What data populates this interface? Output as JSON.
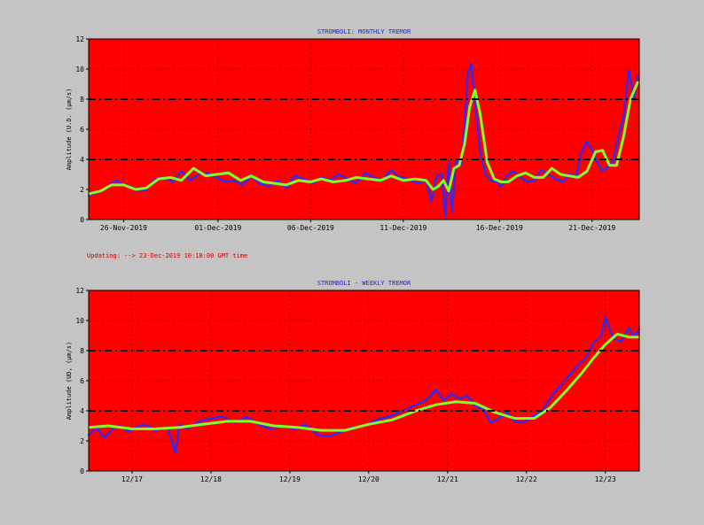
{
  "status": {
    "text": "Updating:  -->  23-Dec-2019 10:18:00 GMT time"
  },
  "colors": {
    "page_background": "#c4c4c4",
    "plot_background": "#ff0000",
    "raw_line": "#2a2aff",
    "smooth_line": "#7fff2a",
    "threshold_line": "#000000",
    "title": "#2020ff",
    "status": "#cc0000"
  },
  "chart_data": [
    {
      "type": "line",
      "title": "STROMBOLI: MONTHLY TREMOR",
      "xlabel": "",
      "ylabel": "Amplitude  (U.D.  (µm/s)",
      "xlim": [
        0,
        31.5
      ],
      "ylim": [
        0,
        12
      ],
      "yticks": [
        0,
        2,
        4,
        6,
        8,
        10,
        12
      ],
      "xticks": [
        {
          "x": 2,
          "label": "26-Nov-2019"
        },
        {
          "x": 7.4,
          "label": "01-Dec-2019"
        },
        {
          "x": 12.7,
          "label": "06-Dec-2019"
        },
        {
          "x": 18,
          "label": "11-Dec-2019"
        },
        {
          "x": 23.5,
          "label": "16-Dec-2019"
        },
        {
          "x": 28.8,
          "label": "21-Dec-2019"
        }
      ],
      "thresholds": [
        4,
        8
      ],
      "grid": true,
      "series": [
        {
          "role": "raw",
          "x": [
            0,
            0.5,
            1,
            1.3,
            1.6,
            2,
            2.4,
            2.8,
            3.3,
            3.8,
            4.3,
            4.8,
            5.3,
            5.8,
            6.3,
            6.8,
            7.3,
            7.8,
            8.3,
            8.8,
            9.3,
            9.8,
            10.3,
            10.8,
            11.3,
            11.8,
            12.3,
            12.8,
            13.3,
            13.8,
            14.3,
            14.8,
            15.3,
            15.8,
            16.3,
            16.8,
            17.3,
            17.8,
            18.3,
            18.8,
            19.3,
            19.6,
            19.9,
            20.2,
            20.4,
            20.6,
            20.8,
            21,
            21.3,
            21.5,
            21.7,
            21.9,
            22.1,
            22.4,
            22.7,
            23,
            23.3,
            23.6,
            23.9,
            24.3,
            24.7,
            25.1,
            25.5,
            25.9,
            26.3,
            26.7,
            27.1,
            27.5,
            27.9,
            28.2,
            28.5,
            28.8,
            29.1,
            29.4,
            29.7,
            30,
            30.3,
            30.6,
            30.9,
            31.2,
            31.4
          ],
          "y": [
            1.6,
            1.8,
            2.1,
            2.4,
            2.6,
            2.3,
            2.2,
            1.9,
            2.0,
            2.7,
            2.8,
            2.5,
            3.2,
            2.6,
            3.0,
            3.1,
            2.8,
            2.5,
            2.6,
            2.3,
            2.9,
            2.4,
            2.2,
            2.6,
            2.1,
            2.9,
            2.7,
            2.4,
            2.8,
            2.6,
            3.0,
            2.7,
            2.4,
            3.1,
            2.8,
            2.6,
            3.3,
            2.8,
            2.7,
            2.4,
            2.6,
            1.2,
            2.9,
            3.0,
            0.2,
            3.8,
            0.5,
            3.9,
            3.7,
            6.0,
            9.8,
            10.3,
            7.8,
            4.5,
            3.0,
            2.6,
            2.5,
            2.2,
            2.9,
            3.2,
            2.8,
            2.5,
            2.6,
            3.3,
            3.0,
            2.7,
            2.5,
            3.0,
            2.9,
            4.5,
            5.2,
            4.6,
            3.8,
            3.2,
            3.5,
            3.8,
            5.5,
            6.8,
            9.9,
            8.1,
            9.5
          ]
        },
        {
          "role": "smoothed",
          "x": [
            0,
            0.7,
            1.3,
            2,
            2.7,
            3.3,
            4,
            4.7,
            5.3,
            6,
            6.7,
            7.3,
            8,
            8.7,
            9.3,
            10,
            10.7,
            11.3,
            12,
            12.7,
            13.3,
            14,
            14.7,
            15.3,
            16,
            16.7,
            17.3,
            18,
            18.7,
            19.3,
            19.7,
            20,
            20.3,
            20.6,
            20.9,
            21.2,
            21.5,
            21.8,
            22.1,
            22.4,
            22.8,
            23.2,
            23.6,
            24,
            24.5,
            25,
            25.5,
            26,
            26.5,
            27,
            27.5,
            28,
            28.5,
            29,
            29.4,
            29.8,
            30.2,
            30.6,
            31,
            31.4
          ],
          "y": [
            1.7,
            1.9,
            2.3,
            2.3,
            2.0,
            2.1,
            2.7,
            2.8,
            2.6,
            3.4,
            2.9,
            3.0,
            3.1,
            2.6,
            2.9,
            2.5,
            2.4,
            2.3,
            2.6,
            2.5,
            2.7,
            2.5,
            2.6,
            2.8,
            2.7,
            2.6,
            2.9,
            2.6,
            2.7,
            2.6,
            2.0,
            2.2,
            2.6,
            1.9,
            3.4,
            3.6,
            5.0,
            7.5,
            8.6,
            7.0,
            3.8,
            2.7,
            2.5,
            2.5,
            2.9,
            3.1,
            2.8,
            2.8,
            3.4,
            3.0,
            2.9,
            2.8,
            3.2,
            4.5,
            4.6,
            3.6,
            3.6,
            5.5,
            8.0,
            9.1
          ]
        }
      ]
    },
    {
      "type": "line",
      "title": "STROMBOLI - WEEKLY TREMOR",
      "xlabel": "",
      "ylabel": "Amplitude (UD, (µm/s)",
      "xlim": [
        16.45,
        23.43
      ],
      "ylim": [
        0,
        12
      ],
      "yticks": [
        0,
        2,
        4,
        6,
        8,
        10,
        12
      ],
      "xticks": [
        {
          "x": 17,
          "label": "12/17"
        },
        {
          "x": 18,
          "label": "12/18"
        },
        {
          "x": 19,
          "label": "12/19"
        },
        {
          "x": 20,
          "label": "12/20"
        },
        {
          "x": 21,
          "label": "12/21"
        },
        {
          "x": 22,
          "label": "12/22"
        },
        {
          "x": 23,
          "label": "12/23"
        }
      ],
      "thresholds": [
        4,
        8
      ],
      "grid": true,
      "series": [
        {
          "role": "raw",
          "x": [
            16.45,
            16.55,
            16.65,
            16.75,
            16.85,
            16.95,
            17.05,
            17.15,
            17.3,
            17.45,
            17.55,
            17.6,
            17.7,
            17.85,
            18,
            18.15,
            18.3,
            18.45,
            18.6,
            18.75,
            18.9,
            19.05,
            19.2,
            19.35,
            19.5,
            19.65,
            19.8,
            19.95,
            20.1,
            20.25,
            20.4,
            20.55,
            20.65,
            20.75,
            20.85,
            20.95,
            21.05,
            21.15,
            21.25,
            21.35,
            21.45,
            21.55,
            21.65,
            21.75,
            21.85,
            21.95,
            22.05,
            22.2,
            22.35,
            22.5,
            22.65,
            22.75,
            22.85,
            22.95,
            23.0,
            23.05,
            23.1,
            23.2,
            23.3,
            23.35,
            23.43
          ],
          "y": [
            2.4,
            2.9,
            2.2,
            2.8,
            3.0,
            2.6,
            2.9,
            3.1,
            2.7,
            2.9,
            1.2,
            3.1,
            2.8,
            3.3,
            3.5,
            3.6,
            3.2,
            3.6,
            3.1,
            2.8,
            3.0,
            2.8,
            3.1,
            2.4,
            2.3,
            2.6,
            2.9,
            3.0,
            3.4,
            3.6,
            3.9,
            4.3,
            4.5,
            4.8,
            5.4,
            4.7,
            5.1,
            4.8,
            5.0,
            4.3,
            4.1,
            3.2,
            3.5,
            3.9,
            3.3,
            3.2,
            3.5,
            4.0,
            5.2,
            6.1,
            7.0,
            7.5,
            8.5,
            9.0,
            10.2,
            9.5,
            8.8,
            8.6,
            9.5,
            8.9,
            9.4
          ]
        },
        {
          "role": "smoothed",
          "x": [
            16.45,
            16.7,
            17,
            17.3,
            17.6,
            17.9,
            18.2,
            18.5,
            18.8,
            19.1,
            19.4,
            19.7,
            20,
            20.3,
            20.6,
            20.85,
            21.1,
            21.35,
            21.6,
            21.85,
            22.1,
            22.3,
            22.5,
            22.7,
            22.85,
            23.0,
            23.15,
            23.3,
            23.43
          ],
          "y": [
            2.9,
            3.0,
            2.8,
            2.8,
            2.9,
            3.1,
            3.3,
            3.3,
            3.0,
            2.9,
            2.7,
            2.7,
            3.1,
            3.4,
            4.0,
            4.4,
            4.6,
            4.5,
            3.9,
            3.5,
            3.5,
            4.2,
            5.3,
            6.5,
            7.5,
            8.4,
            9.1,
            8.9,
            8.9
          ]
        }
      ]
    }
  ]
}
